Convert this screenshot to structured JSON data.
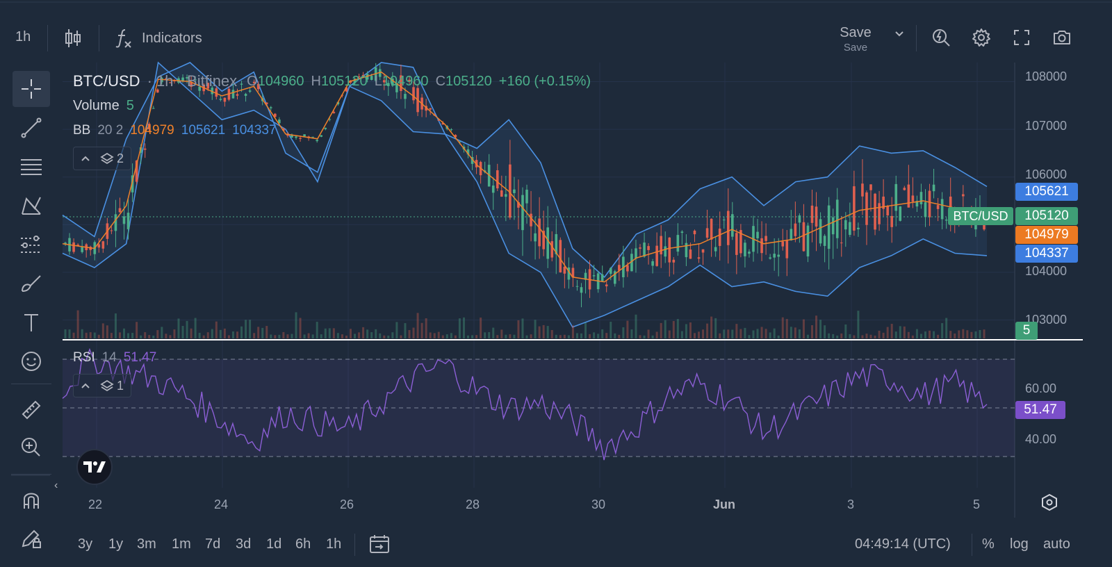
{
  "colors": {
    "background": "#1e2a3a",
    "up": "#4caf8a",
    "down": "#e0604f",
    "bb_basis": "#f0812a",
    "bb_band": "#4a90e2",
    "rsi": "#8c5fd6",
    "rsi_label": "#7b4fc9"
  },
  "topbar": {
    "interval": "1h",
    "indicators_label": "Indicators",
    "save_label": "Save",
    "save_sub": "Save"
  },
  "legend": {
    "symbol": "BTC/USD",
    "interval_exchange": "· 1h · Bitfinex",
    "open_label": "O",
    "open": "104960",
    "high_label": "H",
    "high": "105120",
    "low_label": "L",
    "low": "104960",
    "close_label": "C",
    "close": "105120",
    "change": "+160 (+0.15%)",
    "volume_label": "Volume",
    "volume_value": "5",
    "bb_label": "BB",
    "bb_params": "20 2",
    "bb_basis": "104979",
    "bb_upper": "105621",
    "bb_lower": "104337",
    "main_layers": "2",
    "rsi_label": "RSI",
    "rsi_params": "14",
    "rsi_value": "51.47",
    "rsi_layers": "1"
  },
  "price_axis": {
    "ticks": [
      "108000",
      "107000",
      "106000",
      "104000",
      "103000"
    ],
    "tag_upper": "105621",
    "tag_close": "105120",
    "tag_basis": "104979",
    "tag_lower": "104337",
    "tag_symbol": "BTC/USD",
    "tag_volume": "5"
  },
  "rsi_axis": {
    "ticks": [
      "60.00",
      "40.00"
    ],
    "tag_value": "51.47"
  },
  "time_axis": {
    "ticks": [
      "22",
      "24",
      "26",
      "28",
      "30",
      "Jun",
      "3",
      "5"
    ]
  },
  "bottombar": {
    "ranges": [
      "3y",
      "1y",
      "3m",
      "1m",
      "7d",
      "3d",
      "1d",
      "6h",
      "1h"
    ],
    "clock": "04:49:14 (UTC)",
    "percent": "%",
    "log": "log",
    "auto": "auto"
  },
  "chart_data": {
    "type": "candlestick",
    "title": "BTC/USD · 1h · Bitfinex",
    "y_range": [
      102600,
      108400
    ],
    "bb_upper": [
      105200,
      104750,
      106800,
      108100,
      108400,
      107800,
      108200,
      106500,
      106100,
      107900,
      108400,
      108300,
      106900,
      106600,
      107200,
      106300,
      104500,
      103900,
      104800,
      105100,
      105750,
      106000,
      105400,
      105900,
      106000,
      106650,
      106500,
      106550,
      106200,
      105800
    ],
    "bb_basis": [
      104600,
      104500,
      105400,
      108050,
      108000,
      107700,
      107900,
      106900,
      106800,
      108000,
      108200,
      107700,
      107100,
      106250,
      105700,
      104900,
      103900,
      103800,
      104300,
      104500,
      104600,
      104900,
      104600,
      104700,
      105000,
      105300,
      105400,
      105500,
      105350,
      105100
    ],
    "bb_lower": [
      104400,
      104100,
      104600,
      108400,
      107800,
      107200,
      107400,
      107000,
      105900,
      107900,
      107600,
      106950,
      106900,
      105900,
      104400,
      104000,
      102850,
      103100,
      103400,
      103700,
      104150,
      103700,
      103800,
      103600,
      103500,
      104100,
      104350,
      104700,
      104400,
      104350
    ],
    "rsi": [
      58,
      70,
      65,
      61,
      54,
      45,
      36,
      48,
      44,
      41,
      52,
      62,
      68,
      57,
      50,
      52,
      45,
      34,
      42,
      55,
      60,
      53,
      40,
      47,
      55,
      63,
      62,
      55,
      60,
      51.47
    ],
    "rsi_bands": [
      30,
      50,
      70
    ],
    "x_ticks": [
      "22",
      "24",
      "26",
      "28",
      "30",
      "Jun",
      "3",
      "5"
    ]
  }
}
